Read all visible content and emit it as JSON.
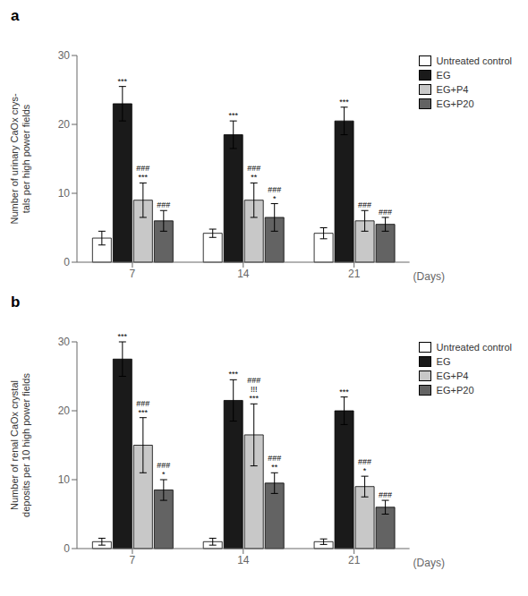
{
  "chart_data": [
    {
      "type": "bar",
      "title": "a",
      "y_label": "Number of urinary CaOx crys-\ntals per high power fields",
      "x_label": "(Days)",
      "categories": [
        "7",
        "14",
        "21"
      ],
      "series": [
        {
          "name": "Untreated control",
          "color": "#ffffff",
          "values": [
            3.5,
            4.2,
            4.2
          ],
          "errors": [
            1.0,
            0.6,
            0.8
          ]
        },
        {
          "name": "EG",
          "color": "#1a1a1a",
          "values": [
            23.0,
            18.5,
            20.5
          ],
          "errors": [
            2.5,
            2.0,
            2.0
          ]
        },
        {
          "name": "EG+P4",
          "color": "#c8c8c8",
          "values": [
            9.0,
            9.0,
            6.0
          ],
          "errors": [
            2.5,
            2.5,
            1.5
          ]
        },
        {
          "name": "EG+P20",
          "color": "#636363",
          "values": [
            6.0,
            6.5,
            5.5
          ],
          "errors": [
            1.5,
            2.0,
            1.0
          ]
        }
      ],
      "ylim": [
        0,
        30
      ],
      "yticks": [
        0,
        10,
        20,
        30
      ],
      "legend": "upper right",
      "annotations": [
        {
          "category": "7",
          "series": "EG",
          "text": [
            "***"
          ]
        },
        {
          "category": "7",
          "series": "EG+P4",
          "text": [
            "***",
            "###"
          ]
        },
        {
          "category": "7",
          "series": "EG+P20",
          "text": [
            "###"
          ]
        },
        {
          "category": "14",
          "series": "EG",
          "text": [
            "***"
          ]
        },
        {
          "category": "14",
          "series": "EG+P4",
          "text": [
            "**",
            "###"
          ]
        },
        {
          "category": "14",
          "series": "EG+P20",
          "text": [
            "*",
            "###"
          ]
        },
        {
          "category": "21",
          "series": "EG",
          "text": [
            "***"
          ]
        },
        {
          "category": "21",
          "series": "EG+P4",
          "text": [
            "###"
          ]
        },
        {
          "category": "21",
          "series": "EG+P20",
          "text": [
            "###"
          ]
        }
      ]
    },
    {
      "type": "bar",
      "title": "b",
      "y_label": "Number of renal CaOx crystal\ndeposits per 10 high power fields",
      "x_label": "(Days)",
      "categories": [
        "7",
        "14",
        "21"
      ],
      "series": [
        {
          "name": "Untreated control",
          "color": "#ffffff",
          "values": [
            1.0,
            1.0,
            1.0
          ],
          "errors": [
            0.5,
            0.5,
            0.4
          ]
        },
        {
          "name": "EG",
          "color": "#1a1a1a",
          "values": [
            27.5,
            21.5,
            20.0
          ],
          "errors": [
            2.5,
            3.0,
            2.0
          ]
        },
        {
          "name": "EG+P4",
          "color": "#c8c8c8",
          "values": [
            15.0,
            16.5,
            9.0
          ],
          "errors": [
            4.0,
            4.5,
            1.5
          ]
        },
        {
          "name": "EG+P20",
          "color": "#636363",
          "values": [
            8.5,
            9.5,
            6.0
          ],
          "errors": [
            1.5,
            1.5,
            1.0
          ]
        }
      ],
      "ylim": [
        0,
        30
      ],
      "yticks": [
        0,
        10,
        20,
        30
      ],
      "legend": "upper right",
      "annotations": [
        {
          "category": "7",
          "series": "EG",
          "text": [
            "***"
          ]
        },
        {
          "category": "7",
          "series": "EG+P4",
          "text": [
            "***",
            "###"
          ]
        },
        {
          "category": "7",
          "series": "EG+P20",
          "text": [
            "*",
            "###"
          ]
        },
        {
          "category": "14",
          "series": "EG",
          "text": [
            "***"
          ]
        },
        {
          "category": "14",
          "series": "EG+P4",
          "text": [
            "***",
            "!!!",
            "###"
          ]
        },
        {
          "category": "14",
          "series": "EG+P20",
          "text": [
            "**",
            "###"
          ]
        },
        {
          "category": "21",
          "series": "EG",
          "text": [
            "***"
          ]
        },
        {
          "category": "21",
          "series": "EG+P4",
          "text": [
            "*",
            "###"
          ]
        },
        {
          "category": "21",
          "series": "EG+P20",
          "text": [
            "###"
          ]
        }
      ]
    }
  ]
}
